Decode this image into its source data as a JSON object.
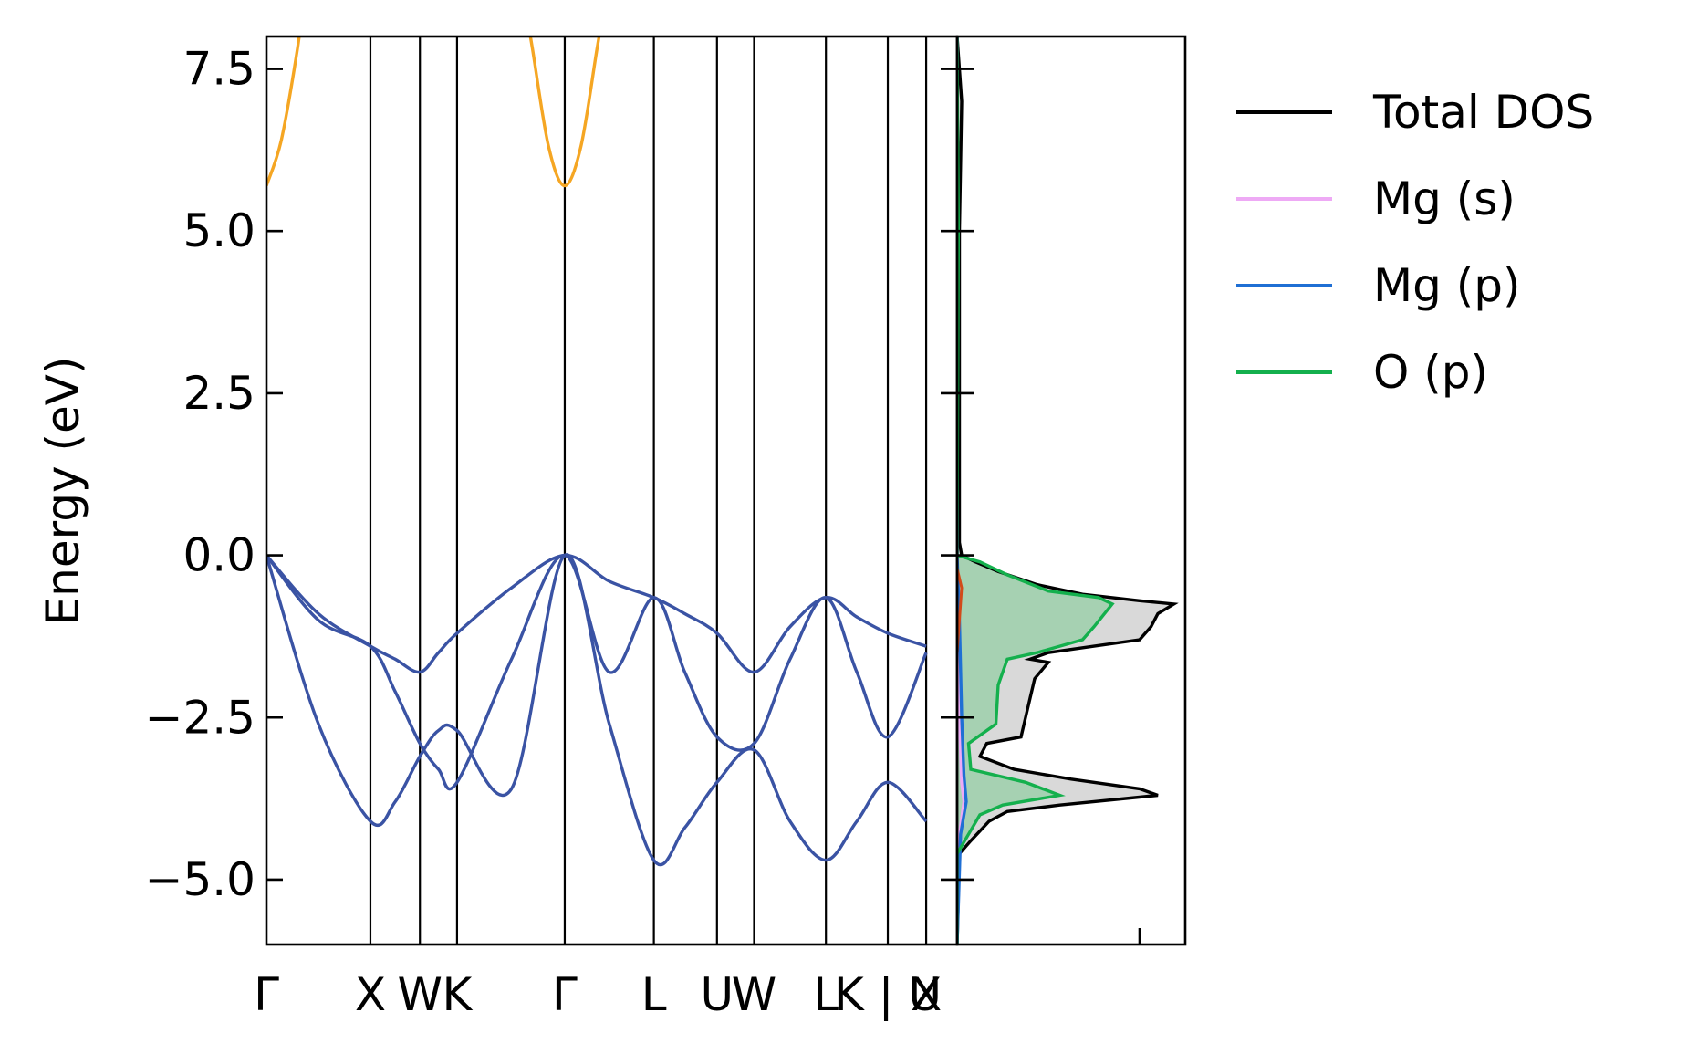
{
  "chart_data": {
    "type": "line",
    "title": "",
    "band_panel": {
      "ylabel": "Energy (eV)",
      "ylim": [
        -6.0,
        8.0
      ],
      "yticks": [
        -5.0,
        -2.5,
        0.0,
        2.5,
        5.0,
        7.5
      ],
      "ytick_labels": [
        "−5.0",
        "−2.5",
        "0.0",
        "2.5",
        "5.0",
        "7.5"
      ],
      "kpath_length": 5.58,
      "kpoints": [
        {
          "label": "Γ",
          "x": 0.0
        },
        {
          "label": "X",
          "x": 0.84
        },
        {
          "label": "W",
          "x": 1.24
        },
        {
          "label": "K",
          "x": 1.54
        },
        {
          "label": "Γ",
          "x": 2.41
        },
        {
          "label": "L",
          "x": 3.13
        },
        {
          "label": "U",
          "x": 3.64
        },
        {
          "label": "W",
          "x": 3.94
        },
        {
          "label": "L",
          "x": 4.52
        },
        {
          "label": "K | U",
          "x": 5.02
        },
        {
          "label": "X",
          "x": 5.33
        }
      ],
      "conduction_band": {
        "color": "#f5a623",
        "points": [
          [
            0.0,
            5.7
          ],
          [
            0.12,
            6.4
          ],
          [
            0.25,
            7.8
          ],
          [
            0.3,
            8.6
          ],
          [
            2.08,
            8.6
          ],
          [
            2.15,
            7.8
          ],
          [
            2.28,
            6.3
          ],
          [
            2.41,
            5.7
          ],
          [
            2.54,
            6.3
          ],
          [
            2.67,
            7.8
          ],
          [
            2.74,
            8.6
          ]
        ]
      },
      "valence_bands": {
        "color": "#3a53a4",
        "bands": [
          [
            [
              0.0,
              0.0
            ],
            [
              0.42,
              -0.9
            ],
            [
              0.84,
              -1.4
            ],
            [
              1.04,
              -1.6
            ],
            [
              1.24,
              -1.8
            ],
            [
              1.39,
              -1.5
            ],
            [
              1.54,
              -1.2
            ],
            [
              1.98,
              -0.5
            ],
            [
              2.41,
              0.0
            ],
            [
              2.77,
              -0.4
            ],
            [
              3.13,
              -0.65
            ],
            [
              3.38,
              -0.9
            ],
            [
              3.64,
              -1.2
            ],
            [
              3.94,
              -1.8
            ],
            [
              4.23,
              -1.1
            ],
            [
              4.52,
              -0.65
            ],
            [
              4.77,
              -0.95
            ],
            [
              5.02,
              -1.2
            ],
            [
              5.33,
              -1.4
            ]
          ],
          [
            [
              0.0,
              0.0
            ],
            [
              0.42,
              -1.0
            ],
            [
              0.84,
              -1.4
            ],
            [
              1.04,
              -2.1
            ],
            [
              1.24,
              -2.9
            ],
            [
              1.39,
              -3.3
            ],
            [
              1.54,
              -3.5
            ],
            [
              1.98,
              -1.6
            ],
            [
              2.41,
              0.0
            ],
            [
              2.77,
              -1.8
            ],
            [
              3.13,
              -0.65
            ],
            [
              3.38,
              -1.8
            ],
            [
              3.64,
              -2.8
            ],
            [
              3.94,
              -2.9
            ],
            [
              4.23,
              -1.6
            ],
            [
              4.52,
              -0.65
            ],
            [
              4.77,
              -1.8
            ],
            [
              5.02,
              -2.8
            ],
            [
              5.33,
              -1.5
            ]
          ],
          [
            [
              0.0,
              0.0
            ],
            [
              0.42,
              -2.6
            ],
            [
              0.84,
              -4.1
            ],
            [
              1.04,
              -3.8
            ],
            [
              1.24,
              -3.1
            ],
            [
              1.39,
              -2.7
            ],
            [
              1.54,
              -2.7
            ],
            [
              1.98,
              -3.6
            ],
            [
              2.41,
              0.0
            ],
            [
              2.77,
              -2.6
            ],
            [
              3.13,
              -4.7
            ],
            [
              3.38,
              -4.2
            ],
            [
              3.64,
              -3.5
            ],
            [
              3.94,
              -3.0
            ],
            [
              4.23,
              -4.1
            ],
            [
              4.52,
              -4.7
            ],
            [
              4.77,
              -4.1
            ],
            [
              5.02,
              -3.5
            ],
            [
              5.33,
              -4.1
            ]
          ]
        ]
      }
    },
    "dos_panel": {
      "xlim": [
        0,
        1.0
      ],
      "fill_color_total": "#d9d9d9",
      "fill_color_o_p": "#a6d1b2",
      "series": [
        {
          "name": "Total DOS",
          "color": "#000000",
          "points": [
            [
              0.0,
              8.0
            ],
            [
              0.02,
              7.0
            ],
            [
              0.01,
              5.0
            ],
            [
              0.01,
              0.2
            ],
            [
              0.02,
              0.0
            ],
            [
              0.08,
              -0.1
            ],
            [
              0.18,
              -0.25
            ],
            [
              0.35,
              -0.45
            ],
            [
              0.55,
              -0.6
            ],
            [
              0.8,
              -0.7
            ],
            [
              0.95,
              -0.75
            ],
            [
              0.88,
              -0.9
            ],
            [
              0.85,
              -1.1
            ],
            [
              0.8,
              -1.3
            ],
            [
              0.6,
              -1.4
            ],
            [
              0.4,
              -1.5
            ],
            [
              0.32,
              -1.6
            ],
            [
              0.4,
              -1.65
            ],
            [
              0.34,
              -1.9
            ],
            [
              0.32,
              -2.2
            ],
            [
              0.3,
              -2.5
            ],
            [
              0.28,
              -2.8
            ],
            [
              0.13,
              -2.9
            ],
            [
              0.1,
              -3.1
            ],
            [
              0.25,
              -3.3
            ],
            [
              0.5,
              -3.45
            ],
            [
              0.8,
              -3.6
            ],
            [
              0.88,
              -3.7
            ],
            [
              0.45,
              -3.85
            ],
            [
              0.22,
              -3.95
            ],
            [
              0.14,
              -4.1
            ],
            [
              0.06,
              -4.4
            ],
            [
              0.01,
              -4.6
            ],
            [
              0.0,
              -6.0
            ]
          ]
        },
        {
          "name": "Mg (s)",
          "color": "#eeaaf5",
          "points": [
            [
              0.0,
              8.0
            ],
            [
              0.0,
              0.0
            ],
            [
              0.005,
              -1.0
            ],
            [
              0.01,
              -2.5
            ],
            [
              0.02,
              -3.5
            ],
            [
              0.03,
              -3.8
            ],
            [
              0.01,
              -4.3
            ],
            [
              0.0,
              -6.0
            ]
          ]
        },
        {
          "name": "Mg (p)",
          "color": "#1f6fd4",
          "points": [
            [
              0.0,
              8.0
            ],
            [
              0.0,
              0.0
            ],
            [
              0.01,
              -1.0
            ],
            [
              0.02,
              -2.5
            ],
            [
              0.03,
              -3.4
            ],
            [
              0.04,
              -3.8
            ],
            [
              0.015,
              -4.3
            ],
            [
              0.0,
              -6.0
            ]
          ]
        },
        {
          "name": "O (p)",
          "color": "#14b04d",
          "points": [
            [
              0.0,
              8.0
            ],
            [
              0.005,
              5.0
            ],
            [
              0.0,
              0.2
            ],
            [
              0.0,
              0.0
            ],
            [
              0.1,
              -0.1
            ],
            [
              0.22,
              -0.3
            ],
            [
              0.4,
              -0.55
            ],
            [
              0.62,
              -0.65
            ],
            [
              0.68,
              -0.75
            ],
            [
              0.6,
              -1.1
            ],
            [
              0.55,
              -1.3
            ],
            [
              0.35,
              -1.5
            ],
            [
              0.22,
              -1.6
            ],
            [
              0.18,
              -2.0
            ],
            [
              0.17,
              -2.6
            ],
            [
              0.05,
              -2.9
            ],
            [
              0.06,
              -3.3
            ],
            [
              0.3,
              -3.5
            ],
            [
              0.45,
              -3.7
            ],
            [
              0.2,
              -3.85
            ],
            [
              0.1,
              -4.0
            ],
            [
              0.05,
              -4.3
            ],
            [
              0.0,
              -4.6
            ],
            [
              0.0,
              -6.0
            ]
          ]
        }
      ],
      "extra_trace": {
        "color": "#d24a1a",
        "points": [
          [
            0.0,
            -0.2
          ],
          [
            0.02,
            -0.5
          ],
          [
            0.01,
            -1.0
          ],
          [
            0.0,
            -1.5
          ]
        ]
      }
    },
    "legend": {
      "placement": "right, outside",
      "entries": [
        {
          "label": "Total DOS",
          "color": "#000000"
        },
        {
          "label": "Mg (s)",
          "color": "#eeaaf5"
        },
        {
          "label": "Mg (p)",
          "color": "#1f6fd4"
        },
        {
          "label": "O (p)",
          "color": "#14b04d"
        }
      ]
    },
    "grid": false
  }
}
